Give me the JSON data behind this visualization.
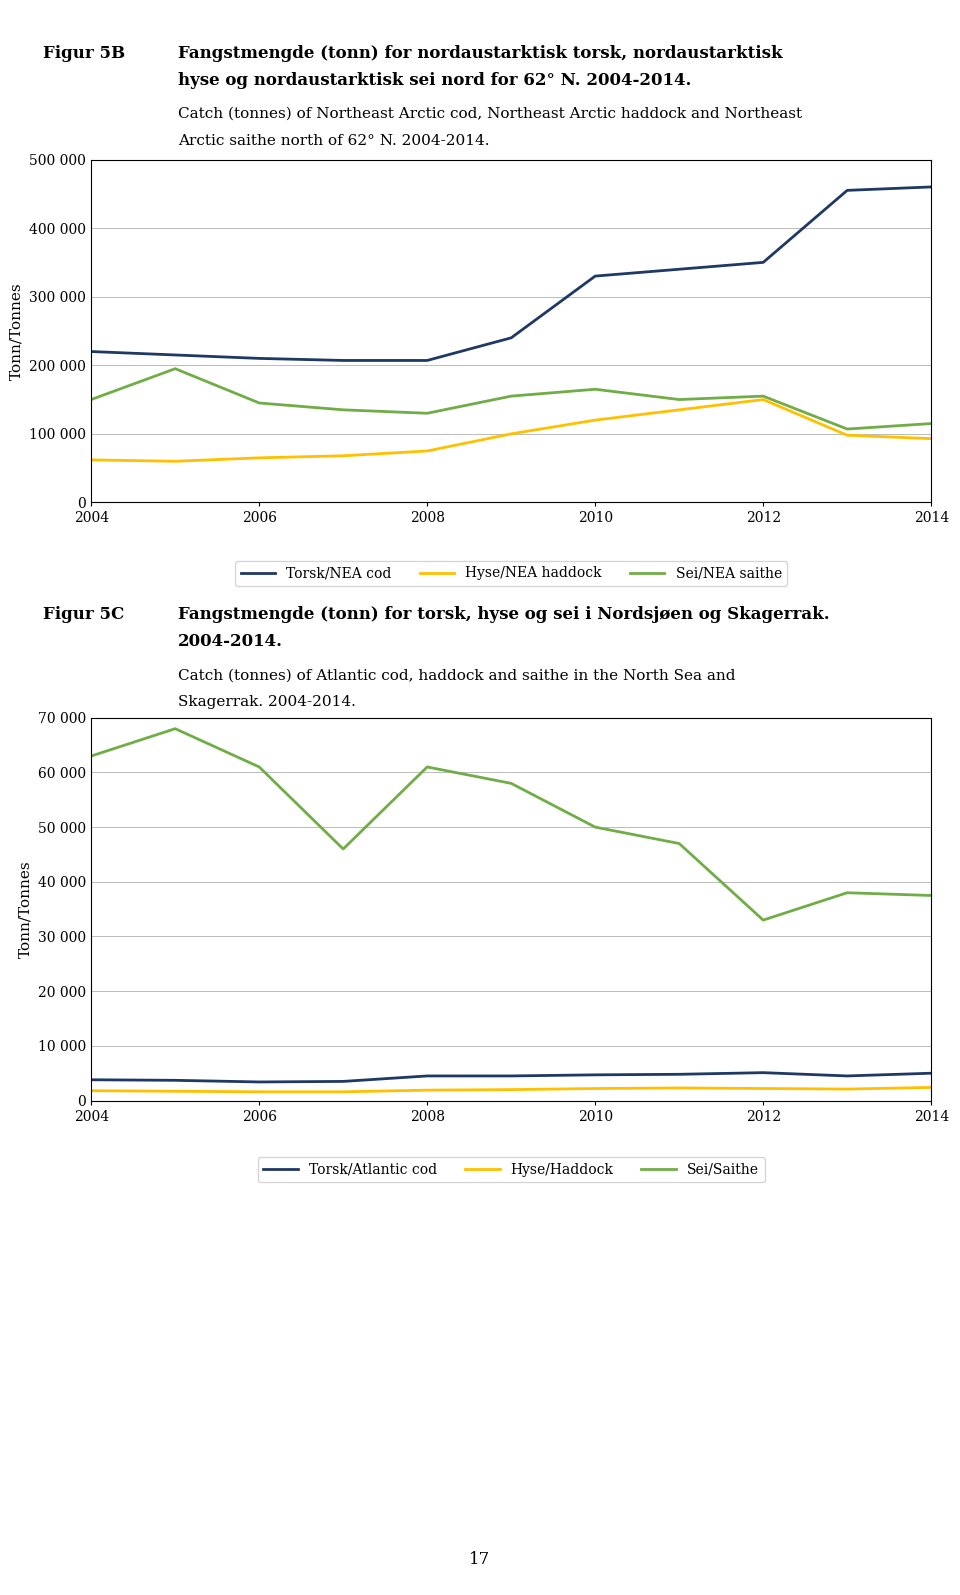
{
  "fig5b": {
    "title_label": "Figur 5B",
    "title_text_bold": "Fangstmengde (tonn) for nordaustarktisk torsk, nordaustarktisk hyse og nordaustarktisk sei nord for 62° N. 2004-2014.",
    "subtitle_text": "Catch (tonnes) of Northeast Arctic cod, Northeast Arctic haddock and Northeast Arctic saithe north of 62° N. 2004-2014.",
    "ylabel": "Tonn/Tonnes",
    "years": [
      2004,
      2005,
      2006,
      2007,
      2008,
      2009,
      2010,
      2011,
      2012,
      2013,
      2014
    ],
    "torsk": [
      220000,
      215000,
      210000,
      207000,
      207000,
      240000,
      330000,
      340000,
      350000,
      455000,
      460000
    ],
    "hyse": [
      62000,
      60000,
      65000,
      68000,
      75000,
      100000,
      120000,
      135000,
      150000,
      98000,
      93000
    ],
    "sei": [
      150000,
      195000,
      145000,
      135000,
      130000,
      155000,
      165000,
      150000,
      155000,
      107000,
      115000
    ],
    "torsk_color": "#1F3864",
    "hyse_color": "#FFC000",
    "sei_color": "#70AD47",
    "ylim": [
      0,
      500000
    ],
    "yticks": [
      0,
      100000,
      200000,
      300000,
      400000,
      500000
    ],
    "ytick_labels": [
      "0",
      "100 000",
      "200 000",
      "300 000",
      "400 000",
      "500 000"
    ],
    "legend_labels": [
      "Torsk/NEA cod",
      "Hyse/NEA haddock",
      "Sei/NEA saithe"
    ]
  },
  "fig5c": {
    "title_label": "Figur 5C",
    "title_text_bold": "Fangstmengde (tonn) for torsk, hyse og sei i Nordsjøen og Skagerrak. 2004-2014.",
    "subtitle_text": "Catch (tonnes) of Atlantic cod, haddock and saithe in the North Sea and Skagerrak. 2004-2014.",
    "ylabel": "Tonn/Tonnes",
    "years": [
      2004,
      2005,
      2006,
      2007,
      2008,
      2009,
      2010,
      2011,
      2012,
      2013,
      2014
    ],
    "torsk": [
      3800,
      3700,
      3400,
      3500,
      4500,
      4500,
      4700,
      4800,
      5100,
      4500,
      5000
    ],
    "hyse": [
      1800,
      1700,
      1600,
      1600,
      1900,
      2000,
      2200,
      2300,
      2200,
      2100,
      2400
    ],
    "sei": [
      63000,
      68000,
      61000,
      46000,
      61000,
      58000,
      50000,
      47000,
      33000,
      38000,
      37500
    ],
    "torsk_color": "#1F3864",
    "hyse_color": "#FFC000",
    "sei_color": "#70AD47",
    "ylim": [
      0,
      70000
    ],
    "yticks": [
      0,
      10000,
      20000,
      30000,
      40000,
      50000,
      60000,
      70000
    ],
    "ytick_labels": [
      "0",
      "10 000",
      "20 000",
      "30 000",
      "40 000",
      "50 000",
      "60 000",
      "70 000"
    ],
    "legend_labels": [
      "Torsk/Atlantic cod",
      "Hyse/Haddock",
      "Sei/Saithe"
    ]
  },
  "page_number": "17",
  "background_color": "#FFFFFF",
  "line_width": 2.0,
  "font_family": "serif",
  "title_fontsize": 12,
  "subtitle_fontsize": 11,
  "tick_fontsize": 10,
  "legend_fontsize": 10,
  "ylabel_fontsize": 11
}
